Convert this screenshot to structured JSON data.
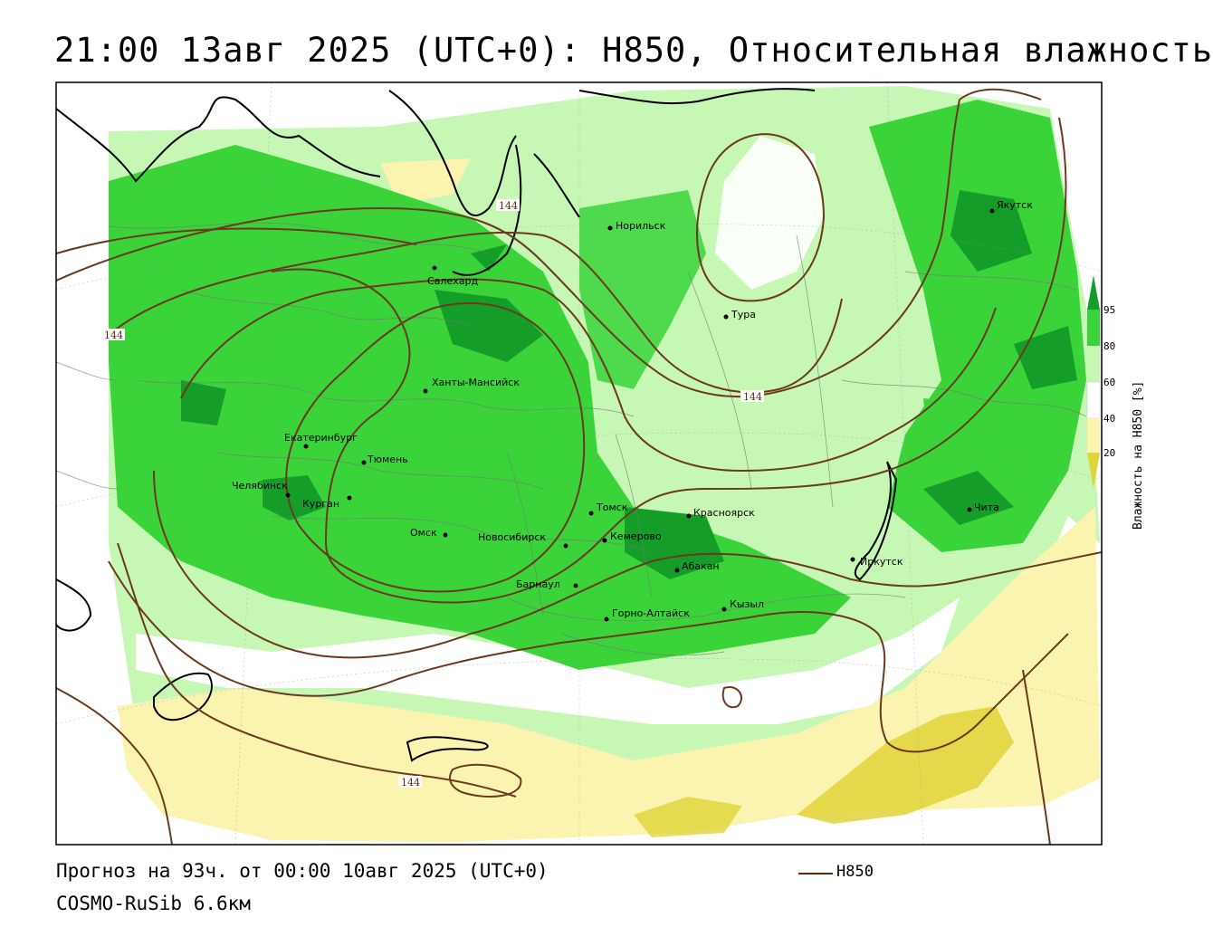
{
  "title": "21:00 13авг 2025 (UTC+0): H850, Относительная влажность",
  "footer": {
    "forecast": "Прогноз на 93ч. от 00:00 10авг 2025 (UTC+0)",
    "model": "COSMO-RuSib 6.6км",
    "legend_label": "H850"
  },
  "colorbar": {
    "title": "Влажность на H850 [%]",
    "ticks": [
      "20",
      "40",
      "60",
      "80",
      "95"
    ],
    "colors": {
      "below_20": "#e0d43a",
      "20_40": "#fbf3b0",
      "40_60": "#ffffff",
      "60_80": "#c7f7b4",
      "80_95": "#3ad43a",
      "above_95": "#159d2a"
    }
  },
  "contour_labels": [
    "144",
    "144",
    "144",
    "144"
  ],
  "cities": [
    {
      "id": "norilsk",
      "name": "Норильск"
    },
    {
      "id": "yakutsk",
      "name": "Якутск"
    },
    {
      "id": "salekhard",
      "name": "Салехард"
    },
    {
      "id": "tura",
      "name": "Тура"
    },
    {
      "id": "khanty",
      "name": "Ханты-Мансийск"
    },
    {
      "id": "ekaterinburg",
      "name": "Екатеринбург"
    },
    {
      "id": "tyumen",
      "name": "Тюмень"
    },
    {
      "id": "chelyabinsk",
      "name": "Челябинск"
    },
    {
      "id": "kurgan",
      "name": "Курган"
    },
    {
      "id": "tomsk",
      "name": "Томск"
    },
    {
      "id": "krasnoyarsk",
      "name": "Красноярск"
    },
    {
      "id": "chita",
      "name": "Чита"
    },
    {
      "id": "omsk",
      "name": "Омск"
    },
    {
      "id": "novosibirsk",
      "name": "Новосибирск"
    },
    {
      "id": "kemerovo",
      "name": "Кемерово"
    },
    {
      "id": "irkutsk",
      "name": "Иркутск"
    },
    {
      "id": "abakan",
      "name": "Абакан"
    },
    {
      "id": "barnaul",
      "name": "Барнаул"
    },
    {
      "id": "kyzyl",
      "name": "Кызыл"
    },
    {
      "id": "gorno",
      "name": "Горно-Алтайск"
    }
  ]
}
